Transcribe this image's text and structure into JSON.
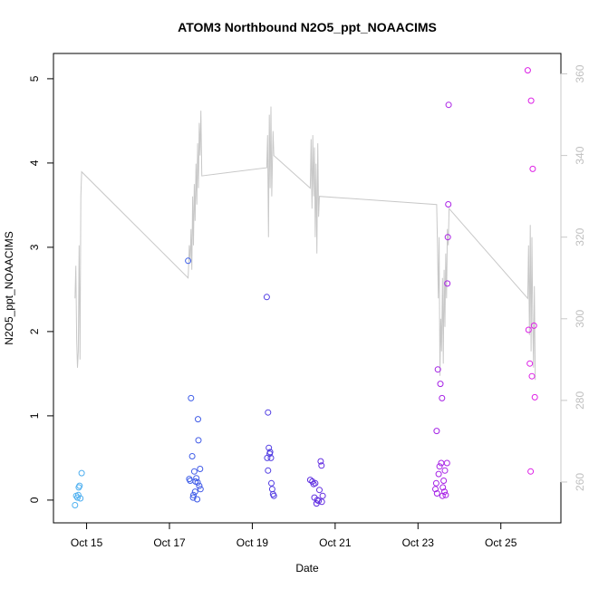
{
  "chart_data": {
    "type": "scatter",
    "title": "ATOM3 Northbound N2O5_ppt_NOAACIMS",
    "xlabel": "Date",
    "ylabel": "N2O5_ppt_NOAACIMS",
    "x_unit": "day of October (fractional)",
    "xlim": [
      14.2,
      26.45
    ],
    "ylim": [
      -0.27,
      5.3
    ],
    "y2lim": [
      250,
      365
    ],
    "x_ticks": [
      {
        "value": 15,
        "label": "Oct 15"
      },
      {
        "value": 17,
        "label": "Oct 17"
      },
      {
        "value": 19,
        "label": "Oct 19"
      },
      {
        "value": 21,
        "label": "Oct 21"
      },
      {
        "value": 23,
        "label": "Oct 23"
      },
      {
        "value": 25,
        "label": "Oct 25"
      }
    ],
    "y_ticks": [
      0,
      1,
      2,
      3,
      4,
      5
    ],
    "y_ticks_labels": [
      "0",
      "1",
      "2",
      "3",
      "4",
      "5"
    ],
    "y2_ticks": [
      260,
      280,
      300,
      320,
      340,
      360
    ],
    "y2_ticks_labels": [
      "260",
      "280",
      "300",
      "320",
      "340",
      "360"
    ],
    "grid": false,
    "legend": "none",
    "secondary_color": "#c8c8c8",
    "color_gradient": [
      "#4fb3f0",
      "#3f5fe8",
      "#5a2fe0",
      "#9a22e6",
      "#e020e6"
    ],
    "series": [
      {
        "kind": "points",
        "points": [
          [
            14.72,
            -0.06
          ],
          [
            14.75,
            0.05
          ],
          [
            14.78,
            0.03
          ],
          [
            14.81,
            0.15
          ],
          [
            14.83,
            0.17
          ],
          [
            14.85,
            0.02
          ],
          [
            14.88,
            0.32
          ],
          [
            14.8,
            0.06
          ],
          [
            17.45,
            2.84
          ],
          [
            17.48,
            0.25
          ],
          [
            17.5,
            0.23
          ],
          [
            17.52,
            1.21
          ],
          [
            17.55,
            0.52
          ],
          [
            17.57,
            0.03
          ],
          [
            17.6,
            0.34
          ],
          [
            17.62,
            0.1
          ],
          [
            17.63,
            0.22
          ],
          [
            17.65,
            0.26
          ],
          [
            17.67,
            0.01
          ],
          [
            17.69,
            0.96
          ],
          [
            17.7,
            0.71
          ],
          [
            17.72,
            0.17
          ],
          [
            17.74,
            0.37
          ],
          [
            17.75,
            0.13
          ],
          [
            17.58,
            0.06
          ],
          [
            17.68,
            0.21
          ],
          [
            19.35,
            2.41
          ],
          [
            19.38,
            1.04
          ],
          [
            19.4,
            0.62
          ],
          [
            19.38,
            0.35
          ],
          [
            19.42,
            0.55
          ],
          [
            19.43,
            0.57
          ],
          [
            19.45,
            0.5
          ],
          [
            19.46,
            0.2
          ],
          [
            19.48,
            0.13
          ],
          [
            19.5,
            0.07
          ],
          [
            19.52,
            0.05
          ],
          [
            19.36,
            0.5
          ],
          [
            20.4,
            0.24
          ],
          [
            20.45,
            0.22
          ],
          [
            20.48,
            0.19
          ],
          [
            20.5,
            0.03
          ],
          [
            20.52,
            0.2
          ],
          [
            20.55,
            -0.04
          ],
          [
            20.57,
            0.0
          ],
          [
            20.6,
            -0.01
          ],
          [
            20.62,
            0.12
          ],
          [
            20.65,
            0.46
          ],
          [
            20.67,
            0.41
          ],
          [
            20.7,
            0.05
          ],
          [
            20.68,
            -0.02
          ],
          [
            23.45,
            0.82
          ],
          [
            23.48,
            1.55
          ],
          [
            23.5,
            0.31
          ],
          [
            23.52,
            0.4
          ],
          [
            23.54,
            1.38
          ],
          [
            23.56,
            0.44
          ],
          [
            23.58,
            1.21
          ],
          [
            23.59,
            0.05
          ],
          [
            23.6,
            0.15
          ],
          [
            23.62,
            0.23
          ],
          [
            23.64,
            0.1
          ],
          [
            23.65,
            0.35
          ],
          [
            23.67,
            0.06
          ],
          [
            23.7,
            0.44
          ],
          [
            23.71,
            2.57
          ],
          [
            23.72,
            3.12
          ],
          [
            23.73,
            3.51
          ],
          [
            23.74,
            4.69
          ],
          [
            23.42,
            0.13
          ],
          [
            23.44,
            0.2
          ],
          [
            23.46,
            0.08
          ],
          [
            25.65,
            5.1
          ],
          [
            25.67,
            2.02
          ],
          [
            25.7,
            1.62
          ],
          [
            25.72,
            0.34
          ],
          [
            25.73,
            4.74
          ],
          [
            25.75,
            1.47
          ],
          [
            25.77,
            3.93
          ],
          [
            25.8,
            2.07
          ],
          [
            25.82,
            1.22
          ]
        ]
      },
      {
        "kind": "line",
        "axis": "right",
        "points": [
          [
            14.72,
            305
          ],
          [
            14.74,
            313
          ],
          [
            14.76,
            295
          ],
          [
            14.78,
            288
          ],
          [
            14.8,
            292
          ],
          [
            14.82,
            318
          ],
          [
            14.84,
            290
          ],
          [
            14.86,
            330
          ],
          [
            14.88,
            336
          ],
          [
            17.45,
            310
          ],
          [
            17.46,
            312
          ],
          [
            17.48,
            318
          ],
          [
            17.5,
            314
          ],
          [
            17.52,
            322
          ],
          [
            17.54,
            312
          ],
          [
            17.56,
            330
          ],
          [
            17.58,
            318
          ],
          [
            17.6,
            333
          ],
          [
            17.62,
            324
          ],
          [
            17.64,
            338
          ],
          [
            17.66,
            328
          ],
          [
            17.68,
            343
          ],
          [
            17.7,
            332
          ],
          [
            17.72,
            348
          ],
          [
            17.74,
            340
          ],
          [
            17.76,
            351
          ],
          [
            17.78,
            335
          ],
          [
            19.35,
            337
          ],
          [
            19.37,
            345
          ],
          [
            19.39,
            320
          ],
          [
            19.41,
            350
          ],
          [
            19.43,
            332
          ],
          [
            19.45,
            352
          ],
          [
            19.47,
            330
          ],
          [
            19.5,
            346
          ],
          [
            19.52,
            340
          ],
          [
            20.4,
            332
          ],
          [
            20.42,
            344
          ],
          [
            20.44,
            327
          ],
          [
            20.46,
            345
          ],
          [
            20.48,
            330
          ],
          [
            20.5,
            342
          ],
          [
            20.52,
            320
          ],
          [
            20.54,
            338
          ],
          [
            20.56,
            316
          ],
          [
            20.58,
            343
          ],
          [
            20.6,
            325
          ],
          [
            20.62,
            330
          ],
          [
            23.45,
            328
          ],
          [
            23.47,
            318
          ],
          [
            23.49,
            305
          ],
          [
            23.51,
            320
          ],
          [
            23.53,
            286
          ],
          [
            23.55,
            300
          ],
          [
            23.57,
            292
          ],
          [
            23.59,
            310
          ],
          [
            23.61,
            289
          ],
          [
            23.63,
            312
          ],
          [
            23.65,
            298
          ],
          [
            23.67,
            316
          ],
          [
            23.69,
            305
          ],
          [
            23.71,
            322
          ],
          [
            23.73,
            318
          ],
          [
            23.75,
            327
          ],
          [
            25.65,
            305
          ],
          [
            25.67,
            318
          ],
          [
            25.69,
            296
          ],
          [
            25.71,
            323
          ],
          [
            25.73,
            292
          ],
          [
            25.75,
            320
          ],
          [
            25.77,
            300
          ],
          [
            25.79,
            288
          ],
          [
            25.81,
            308
          ],
          [
            25.83,
            285
          ]
        ]
      }
    ]
  }
}
